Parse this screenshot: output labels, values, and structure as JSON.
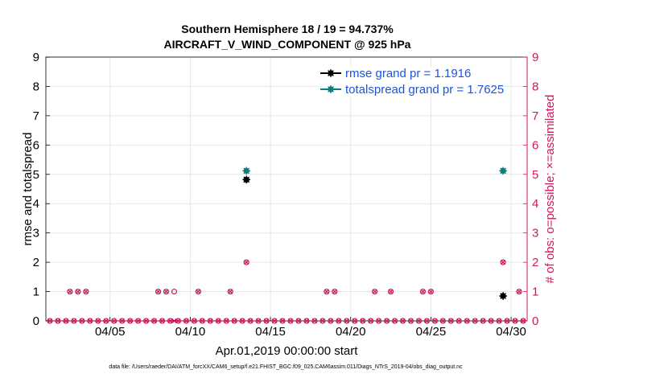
{
  "chart_data": {
    "type": "scatter",
    "title_line1": "Southern Hemisphere 18 / 19 = 94.737%",
    "title_line2": "AIRCRAFT_V_WIND_COMPONENT @ 925 hPa",
    "ylabel_left": "rmse and totalspread",
    "ylabel_right": "# of obs: o=possible; ×=assimilated",
    "xlabel": "Apr.01,2019 00:00:00 start",
    "footnote": "data file: /Users/raeder/DAI/ATM_forcXX/CAM6_setup/f.e21.FHIST_BGC.f09_025.CAM6assim.011/Diags_NTrS_2019-04/obs_diag_output.nc",
    "xlim": [
      1.0,
      31.0
    ],
    "ylim_left": [
      0,
      9
    ],
    "ylim_right": [
      0,
      9
    ],
    "x_tick_values": [
      5,
      10,
      15,
      20,
      25,
      30
    ],
    "x_tick_labels": [
      "04/05",
      "04/10",
      "04/15",
      "04/20",
      "04/25",
      "04/30"
    ],
    "y_ticks_left": [
      "0",
      "1",
      "2",
      "3",
      "4",
      "5",
      "6",
      "7",
      "8",
      "9"
    ],
    "y_ticks_right": [
      "0",
      "1",
      "2",
      "3",
      "4",
      "5",
      "6",
      "7",
      "8",
      "9"
    ],
    "grid": true,
    "legend_position": "top-right",
    "colors": {
      "rmse": "#000000",
      "totalspread": "#0e7f7f",
      "obs": "#d6145f",
      "legend_text": "#1a55e0",
      "grid": "#e6e6e6"
    },
    "series": [
      {
        "name": "rmse grand pr = 1.1916",
        "key": "rmse",
        "points": [
          [
            13.5,
            4.82
          ],
          [
            29.5,
            0.85
          ]
        ]
      },
      {
        "name": "totalspread grand pr = 1.7625",
        "key": "totalspread",
        "points": [
          [
            13.5,
            5.12
          ],
          [
            29.5,
            5.12
          ]
        ]
      }
    ],
    "obs_start": 1.25,
    "obs_step": 0.5,
    "obs_possible": [
      0,
      0,
      0,
      0,
      0,
      0,
      0,
      0,
      0,
      0,
      0,
      0,
      0,
      0,
      0,
      0,
      0,
      0,
      0,
      0,
      0,
      0,
      0,
      0,
      0,
      0,
      0,
      0,
      0,
      0,
      0,
      0,
      0,
      0,
      0,
      0,
      0,
      0,
      0,
      0,
      0,
      0,
      0,
      0,
      0,
      0,
      0,
      0,
      0,
      0,
      0,
      0,
      0,
      0,
      0,
      0,
      0,
      0,
      0,
      0
    ],
    "obs_assimilated": [
      0,
      0,
      0,
      0,
      0,
      0,
      0,
      0,
      0,
      0,
      0,
      0,
      0,
      0,
      0,
      0,
      0,
      0,
      0,
      0,
      0,
      0,
      0,
      0,
      0,
      0,
      0,
      0,
      0,
      0,
      0,
      0,
      0,
      0,
      0,
      0,
      0,
      0,
      0,
      0,
      0,
      0,
      0,
      0,
      0,
      0,
      0,
      0,
      0,
      0,
      0,
      0,
      0,
      0,
      0,
      0,
      0,
      0,
      0,
      0
    ],
    "obs_overrides": [
      {
        "x": 2.5,
        "possible": 1,
        "assimilated": 1
      },
      {
        "x": 3.0,
        "possible": 1,
        "assimilated": 1
      },
      {
        "x": 3.5,
        "possible": 1,
        "assimilated": 1
      },
      {
        "x": 8.0,
        "possible": 1,
        "assimilated": 1
      },
      {
        "x": 8.5,
        "possible": 1,
        "assimilated": 1
      },
      {
        "x": 9.0,
        "possible": 1,
        "assimilated": 0
      },
      {
        "x": 10.5,
        "possible": 1,
        "assimilated": 1
      },
      {
        "x": 12.5,
        "possible": 1,
        "assimilated": 1
      },
      {
        "x": 13.5,
        "possible": 2,
        "assimilated": 2
      },
      {
        "x": 18.5,
        "possible": 1,
        "assimilated": 1
      },
      {
        "x": 19.0,
        "possible": 1,
        "assimilated": 1
      },
      {
        "x": 21.5,
        "possible": 1,
        "assimilated": 1
      },
      {
        "x": 22.5,
        "possible": 1,
        "assimilated": 1
      },
      {
        "x": 24.5,
        "possible": 1,
        "assimilated": 1
      },
      {
        "x": 25.0,
        "possible": 1,
        "assimilated": 1
      },
      {
        "x": 29.5,
        "possible": 2,
        "assimilated": 2
      },
      {
        "x": 30.5,
        "possible": 1,
        "assimilated": 1
      }
    ]
  }
}
